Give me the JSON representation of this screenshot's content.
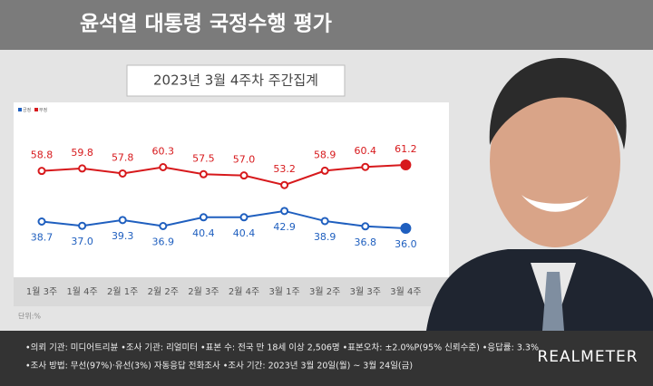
{
  "chart_data": {
    "type": "line",
    "title": "윤석열 대통령 국정수행 평가",
    "subtitle": "2023년 3월 4주차 주간집계",
    "categories": [
      "1월 3주",
      "1월 4주",
      "2월 1주",
      "2월 2주",
      "2월 3주",
      "2월 4주",
      "3월 1주",
      "3월 2주",
      "3월 3주",
      "3월 4주"
    ],
    "series": [
      {
        "name": "부정",
        "color": "#d7191c",
        "values": [
          58.8,
          59.8,
          57.8,
          60.3,
          57.5,
          57.0,
          53.2,
          58.9,
          60.4,
          61.2
        ],
        "value_labels": [
          "58.8",
          "59.8",
          "57.8",
          "60.3",
          "57.5",
          "57.0",
          "53.2",
          "58.9",
          "60.4",
          "61.2"
        ]
      },
      {
        "name": "긍정",
        "color": "#1f5fbf",
        "values": [
          38.7,
          37.0,
          39.3,
          36.9,
          40.4,
          40.4,
          42.9,
          38.9,
          36.8,
          36.0
        ],
        "value_labels": [
          "38.7",
          "37.0",
          "39.3",
          "36.9",
          "40.4",
          "40.4",
          "42.9",
          "38.9",
          "36.8",
          "36.0"
        ]
      }
    ],
    "unit_note": "단위:%",
    "notes": [
      "•의뢰 기관: 미디어트리뷴 •조사 기관: 리얼미터 •표본 수: 전국 만 18세 이상 2,506명 •표본오차: ±2.0%P(95% 신뢰수준) •응답률: 3.3%",
      "•조사 방법: 무선(97%)·유선(3%) 자동응답 전화조사 •조사 기간: 2023년 3월 20일(월) ~ 3월 24일(금)"
    ],
    "brand": "REALMETER"
  }
}
